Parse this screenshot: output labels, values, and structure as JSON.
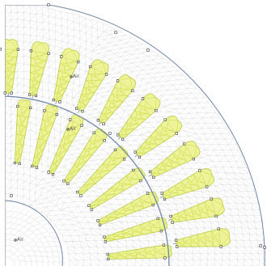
{
  "labels": {
    "air_upper": "Air",
    "air_middle": "Air",
    "air_lower": "Air"
  },
  "colors": {
    "background": "#ffffff",
    "mesh_line": "#d4d4d4",
    "boundary": "#6f86a8",
    "slot_fill": "#eef39a",
    "slot_mesh": "#c2d630",
    "slot_outline": "#b9cc3a",
    "node": "#333333",
    "label": "#555555"
  }
}
